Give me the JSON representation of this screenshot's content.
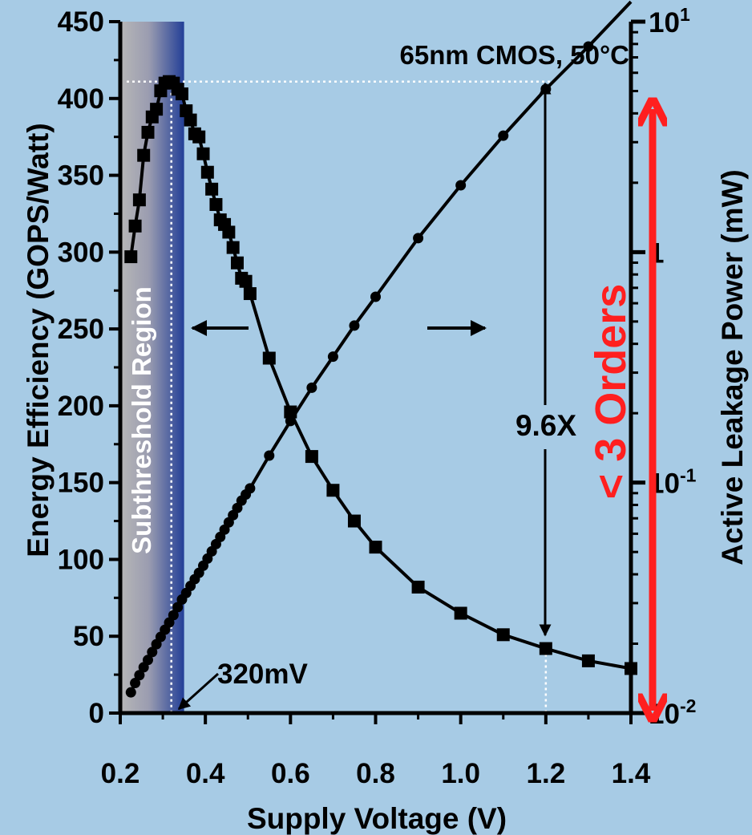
{
  "chart_data": {
    "type": "line",
    "title": "65nm CMOS, 50°C",
    "xlabel": "Supply Voltage (V)",
    "ylabel_left": "Energy Efficiency (GOPS/Watt)",
    "ylabel_right": "Active Leakage Power (mW)",
    "xlim": [
      0.2,
      1.4
    ],
    "ylim_left": [
      0,
      450
    ],
    "ylim_right": [
      0.01,
      10
    ],
    "right_axis_scale": "log",
    "grid": false,
    "x_ticks": [
      "0.2",
      "0.4",
      "0.6",
      "0.8",
      "1.0",
      "1.2",
      "1.4"
    ],
    "x_tick_values": [
      0.2,
      0.4,
      0.6,
      0.8,
      1.0,
      1.2,
      1.4
    ],
    "y_left_ticks": [
      "0",
      "50",
      "100",
      "150",
      "200",
      "250",
      "300",
      "350",
      "400",
      "450"
    ],
    "y_left_tick_values": [
      0,
      50,
      100,
      150,
      200,
      250,
      300,
      350,
      400,
      450
    ],
    "y_right_ticks": [
      {
        "value": 0.01,
        "base": "10",
        "exp": "-2"
      },
      {
        "value": 0.1,
        "base": "10",
        "exp": "-1"
      },
      {
        "value": 1,
        "base": "1",
        "exp": ""
      },
      {
        "value": 10,
        "base": "10",
        "exp": "1"
      }
    ],
    "series": [
      {
        "axis": "left",
        "marker": "square",
        "x": [
          0.225,
          0.235,
          0.245,
          0.255,
          0.265,
          0.275,
          0.285,
          0.295,
          0.305,
          0.315,
          0.325,
          0.335,
          0.345,
          0.355,
          0.365,
          0.375,
          0.385,
          0.395,
          0.405,
          0.415,
          0.425,
          0.435,
          0.445,
          0.455,
          0.465,
          0.475,
          0.485,
          0.495,
          0.505,
          0.55,
          0.6,
          0.65,
          0.7,
          0.75,
          0.8,
          0.9,
          1.0,
          1.1,
          1.2,
          1.3,
          1.4
        ],
        "values": [
          297,
          317,
          334,
          363,
          378,
          388,
          393,
          405,
          410,
          411,
          410,
          406,
          403,
          392,
          386,
          377,
          375,
          364,
          352,
          341,
          331,
          321,
          318,
          313,
          303,
          293,
          283,
          281,
          273,
          231,
          196,
          167,
          145,
          125,
          108,
          82,
          65,
          51,
          42,
          34,
          29
        ]
      },
      {
        "axis": "right",
        "marker": "circle",
        "x": [
          0.225,
          0.235,
          0.245,
          0.255,
          0.265,
          0.275,
          0.285,
          0.295,
          0.305,
          0.315,
          0.325,
          0.335,
          0.345,
          0.355,
          0.365,
          0.375,
          0.385,
          0.395,
          0.405,
          0.415,
          0.425,
          0.435,
          0.445,
          0.455,
          0.465,
          0.475,
          0.485,
          0.495,
          0.505,
          0.55,
          0.6,
          0.65,
          0.7,
          0.75,
          0.8,
          0.9,
          1.0,
          1.1,
          1.2,
          1.3,
          1.4
        ],
        "values": [
          0.0123,
          0.0135,
          0.0146,
          0.0158,
          0.017,
          0.0184,
          0.0199,
          0.0214,
          0.023,
          0.0247,
          0.0266,
          0.0288,
          0.0311,
          0.0332,
          0.0356,
          0.0381,
          0.0406,
          0.0436,
          0.0468,
          0.0503,
          0.0541,
          0.0581,
          0.0625,
          0.0672,
          0.0722,
          0.0776,
          0.0835,
          0.0888,
          0.0944,
          0.131,
          0.185,
          0.258,
          0.352,
          0.48,
          0.64,
          1.15,
          1.95,
          3.2,
          5.1,
          7.8,
          12.2
        ]
      }
    ],
    "annotations": {
      "region": "Subthreshold Region",
      "vmin": "320mV",
      "ratio": "9.6X",
      "orders": "< 3 Orders"
    },
    "colors": {
      "background": "#a7cbe5",
      "region_gray": "#b3b3b3",
      "region_blue": "#233f97",
      "orders_arrow": "#ff1f1f"
    }
  }
}
